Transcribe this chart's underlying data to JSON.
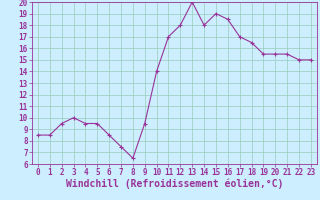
{
  "x": [
    0,
    1,
    2,
    3,
    4,
    5,
    6,
    7,
    8,
    9,
    10,
    11,
    12,
    13,
    14,
    15,
    16,
    17,
    18,
    19,
    20,
    21,
    22,
    23
  ],
  "y": [
    8.5,
    8.5,
    9.5,
    10.0,
    9.5,
    9.5,
    8.5,
    7.5,
    6.5,
    9.5,
    14.0,
    17.0,
    18.0,
    20.0,
    18.0,
    19.0,
    18.5,
    17.0,
    16.5,
    15.5,
    15.5,
    15.5,
    15.0,
    15.0
  ],
  "line_color": "#993399",
  "marker": "+",
  "background_color": "#cceeff",
  "grid_color": "#99ccbb",
  "xlabel": "Windchill (Refroidissement éolien,°C)",
  "ylim": [
    6,
    20
  ],
  "xlim_min": -0.5,
  "xlim_max": 23.5,
  "yticks": [
    6,
    7,
    8,
    9,
    10,
    11,
    12,
    13,
    14,
    15,
    16,
    17,
    18,
    19,
    20
  ],
  "xticks": [
    0,
    1,
    2,
    3,
    4,
    5,
    6,
    7,
    8,
    9,
    10,
    11,
    12,
    13,
    14,
    15,
    16,
    17,
    18,
    19,
    20,
    21,
    22,
    23
  ],
  "tick_label_fontsize": 5.5,
  "xlabel_fontsize": 7.0
}
